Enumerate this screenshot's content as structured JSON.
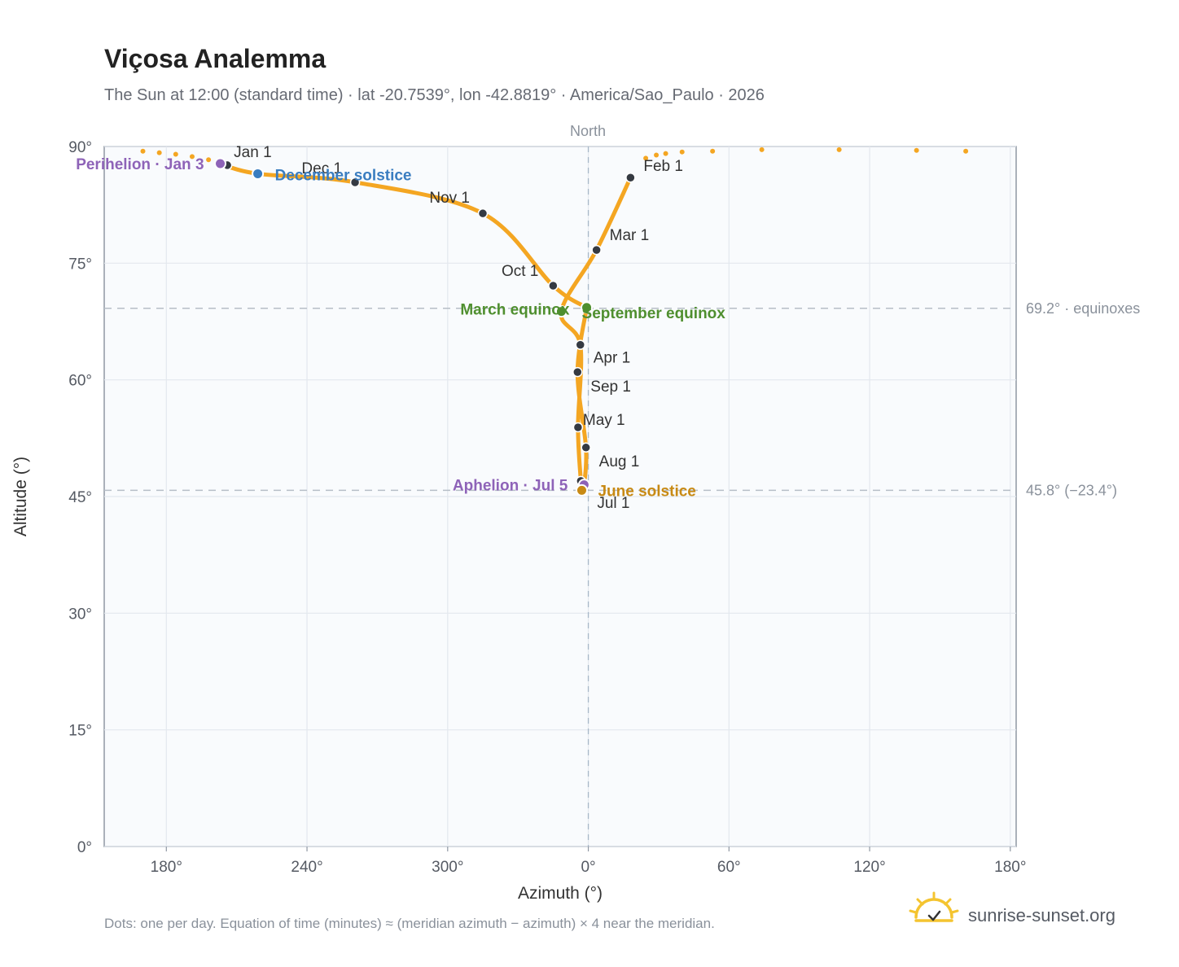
{
  "header": {
    "title": "Viçosa Analemma",
    "subtitle": "The Sun at 12:00 (standard time) · lat -20.7539°, lon -42.8819° · America/Sao_Paulo · 2026"
  },
  "chart_data": {
    "type": "scatter",
    "xlabel": "Azimuth (°)",
    "ylabel": "Altitude (°)",
    "north_label": "North",
    "x_ticks": [
      {
        "value": 180,
        "label": "180°"
      },
      {
        "value": 240,
        "label": "240°"
      },
      {
        "value": 300,
        "label": "300°"
      },
      {
        "value": 360,
        "label": "0°"
      },
      {
        "value": 420,
        "label": "60°"
      },
      {
        "value": 480,
        "label": "120°"
      },
      {
        "value": 540,
        "label": "180°"
      }
    ],
    "y_ticks": [
      {
        "value": 0,
        "label": "0°"
      },
      {
        "value": 15,
        "label": "15°"
      },
      {
        "value": 30,
        "label": "30°"
      },
      {
        "value": 45,
        "label": "45°"
      },
      {
        "value": 60,
        "label": "60°"
      },
      {
        "value": 75,
        "label": "75°"
      },
      {
        "value": 90,
        "label": "90°"
      }
    ],
    "xlim": [
      153.5,
      542.5
    ],
    "ylim": [
      0,
      90
    ],
    "reference_lines": [
      {
        "y": 69.2,
        "label": "69.2° · equinoxes"
      },
      {
        "y": 45.8,
        "label": "45.8° (−23.4°)"
      }
    ],
    "month_markers": [
      {
        "label": "Jan 1",
        "x": 206,
        "y": 87.6
      },
      {
        "label": "Feb 1",
        "x": 378,
        "y": 86.0
      },
      {
        "label": "Mar 1",
        "x": 363.5,
        "y": 76.7
      },
      {
        "label": "Apr 1",
        "x": 356.6,
        "y": 64.5
      },
      {
        "label": "May 1",
        "x": 355.6,
        "y": 53.9
      },
      {
        "label": "Jul 1",
        "x": 356.8,
        "y": 47.0
      },
      {
        "label": "Aug 1",
        "x": 359,
        "y": 51.3
      },
      {
        "label": "Sep 1",
        "x": 355.4,
        "y": 61.0
      },
      {
        "label": "Oct 1",
        "x": 345,
        "y": 72.1
      },
      {
        "label": "Nov 1",
        "x": 315,
        "y": 81.4
      },
      {
        "label": "Dec 1",
        "x": 260.5,
        "y": 85.4
      }
    ],
    "events": [
      {
        "label": "Perihelion · Jan 3",
        "x": 203,
        "y": 87.8,
        "color": "#8e63b8"
      },
      {
        "label": "December solstice",
        "x": 219,
        "y": 86.5,
        "color": "#3a7dc0"
      },
      {
        "label": "March equinox",
        "x": 348.5,
        "y": 68.8,
        "color": "#4f8f2f"
      },
      {
        "label": "September equinox",
        "x": 359.3,
        "y": 69.3,
        "color": "#4f8f2f"
      },
      {
        "label": "Aphelion · Jul 5",
        "x": 358.2,
        "y": 46.5,
        "color": "#8e63b8"
      },
      {
        "label": "June solstice",
        "x": 357.2,
        "y": 45.8,
        "color": "#c88a14"
      }
    ],
    "curve_color": "#f4a622",
    "marker_color": "#353a42",
    "sparse_points": [
      {
        "x": 170,
        "y": 89.4
      },
      {
        "x": 177,
        "y": 89.2
      },
      {
        "x": 184,
        "y": 89.0
      },
      {
        "x": 191,
        "y": 88.7
      },
      {
        "x": 198,
        "y": 88.3
      },
      {
        "x": 384.5,
        "y": 88.5
      },
      {
        "x": 389,
        "y": 88.9
      },
      {
        "x": 393,
        "y": 89.1
      },
      {
        "x": 400,
        "y": 89.3
      },
      {
        "x": 413,
        "y": 89.4
      },
      {
        "x": 434,
        "y": 89.6
      },
      {
        "x": 467,
        "y": 89.6
      },
      {
        "x": 500,
        "y": 89.5
      },
      {
        "x": 521,
        "y": 89.4
      }
    ],
    "grid": true,
    "footnote": "Dots: one per day. Equation of time (minutes) ≈ (meridian azimuth − azimuth) × 4 near the meridian."
  },
  "branding": {
    "site": "sunrise-sunset.org",
    "logo_icon": "sun-check-icon",
    "logo_color": "#f4c430"
  }
}
